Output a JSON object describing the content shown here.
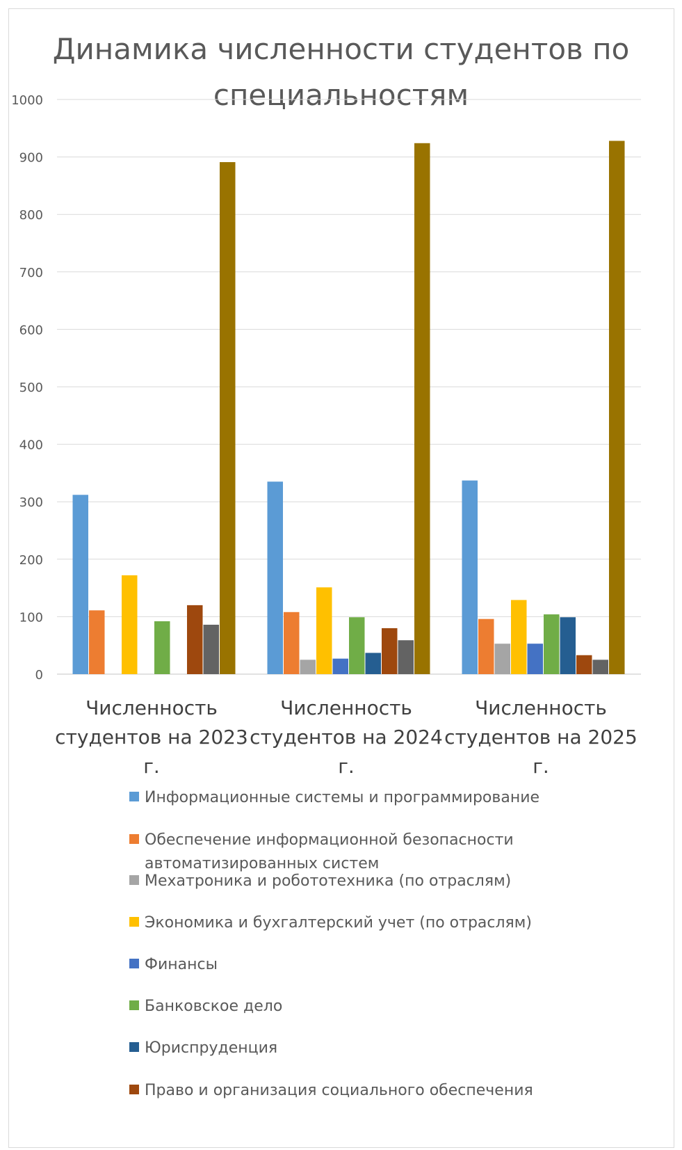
{
  "chart_data": {
    "type": "bar",
    "title": "Динамика численности студентов по специальностям",
    "categories": [
      "Численность студентов на 2023 г.",
      "Численность студентов на 2024 г.",
      "Численность студентов на 2025 г."
    ],
    "ylim": [
      0,
      1000
    ],
    "yticks": [
      0,
      100,
      200,
      300,
      400,
      500,
      600,
      700,
      800,
      900,
      1000
    ],
    "grid": true,
    "legend_position": "bottom",
    "series": [
      {
        "name": "Информационные системы и программирование",
        "color": "#5b9bd5",
        "values": [
          312,
          335,
          337
        ]
      },
      {
        "name": "Обеспечение информационной безопасности автоматизированных систем",
        "color": "#ed7d31",
        "values": [
          111,
          108,
          96
        ]
      },
      {
        "name": "Мехатроника и робототехника (по отраслям)",
        "color": "#a5a5a5",
        "values": [
          0,
          25,
          53
        ]
      },
      {
        "name": "Экономика и бухгалтерский учет (по отраслям)",
        "color": "#ffc000",
        "values": [
          172,
          151,
          129
        ]
      },
      {
        "name": "Финансы",
        "color": "#4472c4",
        "values": [
          0,
          27,
          53
        ]
      },
      {
        "name": "Банковское дело",
        "color": "#70ad47",
        "values": [
          92,
          99,
          104
        ]
      },
      {
        "name": "Юриспруденция",
        "color": "#255e91",
        "values": [
          0,
          37,
          99
        ]
      },
      {
        "name": "Право и организация социального обеспечения",
        "color": "#9e480e",
        "values": [
          120,
          80,
          33
        ]
      },
      {
        "name": "",
        "color": "#636363",
        "values": [
          86,
          59,
          25
        ]
      },
      {
        "name": "",
        "color": "#997300",
        "values": [
          891,
          924,
          928
        ]
      }
    ]
  }
}
